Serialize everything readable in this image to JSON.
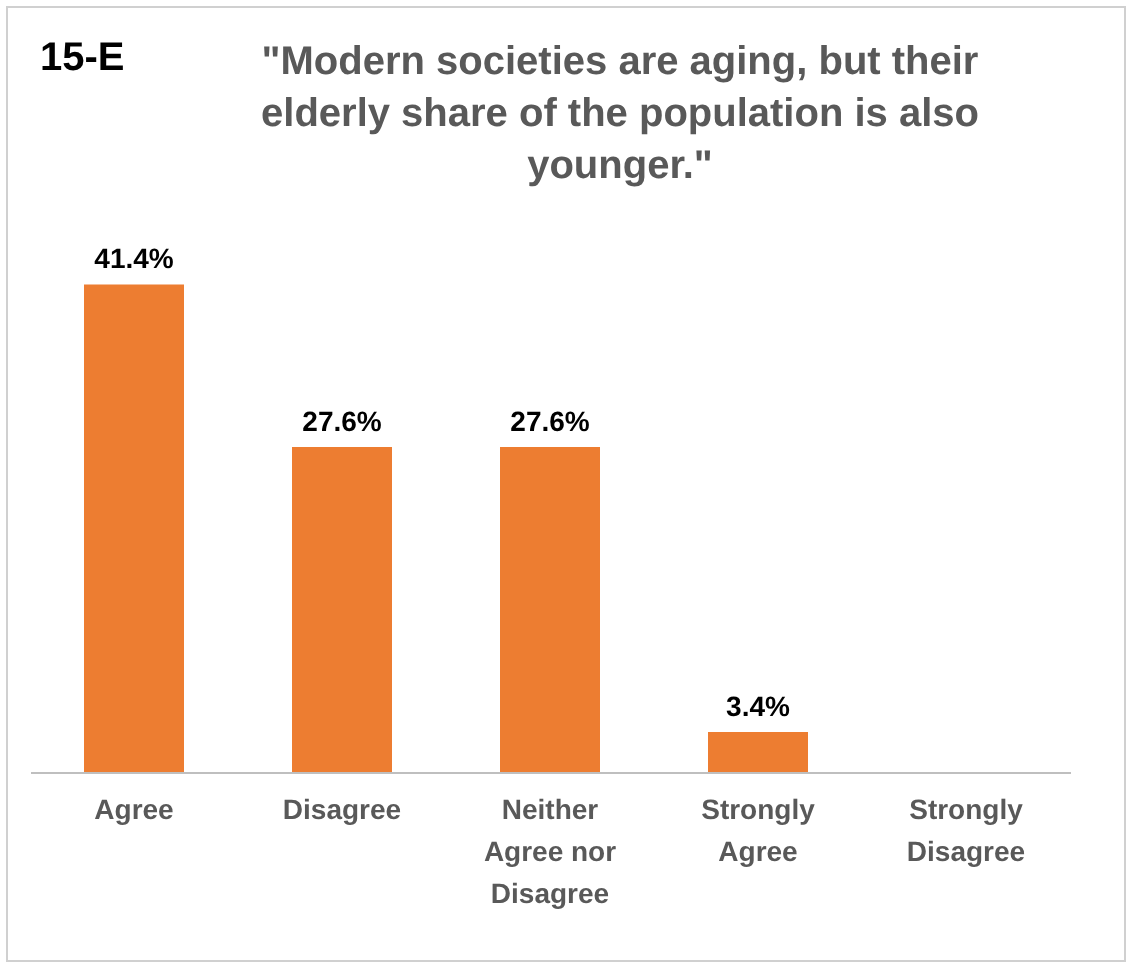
{
  "chart_data": {
    "type": "bar",
    "title": "15-E",
    "subtitle": "\"Modern societies are aging, but their elderly share of the population is also younger.\"",
    "categories": [
      "Agree",
      "Disagree",
      "Neither Agree nor Disagree",
      "Strongly Agree",
      "Strongly Disagree"
    ],
    "values": [
      41.4,
      27.6,
      27.6,
      3.4,
      0
    ],
    "value_labels": [
      "41.4%",
      "27.6%",
      "27.6%",
      "3.4%",
      null
    ],
    "color": "#ed7d31"
  }
}
